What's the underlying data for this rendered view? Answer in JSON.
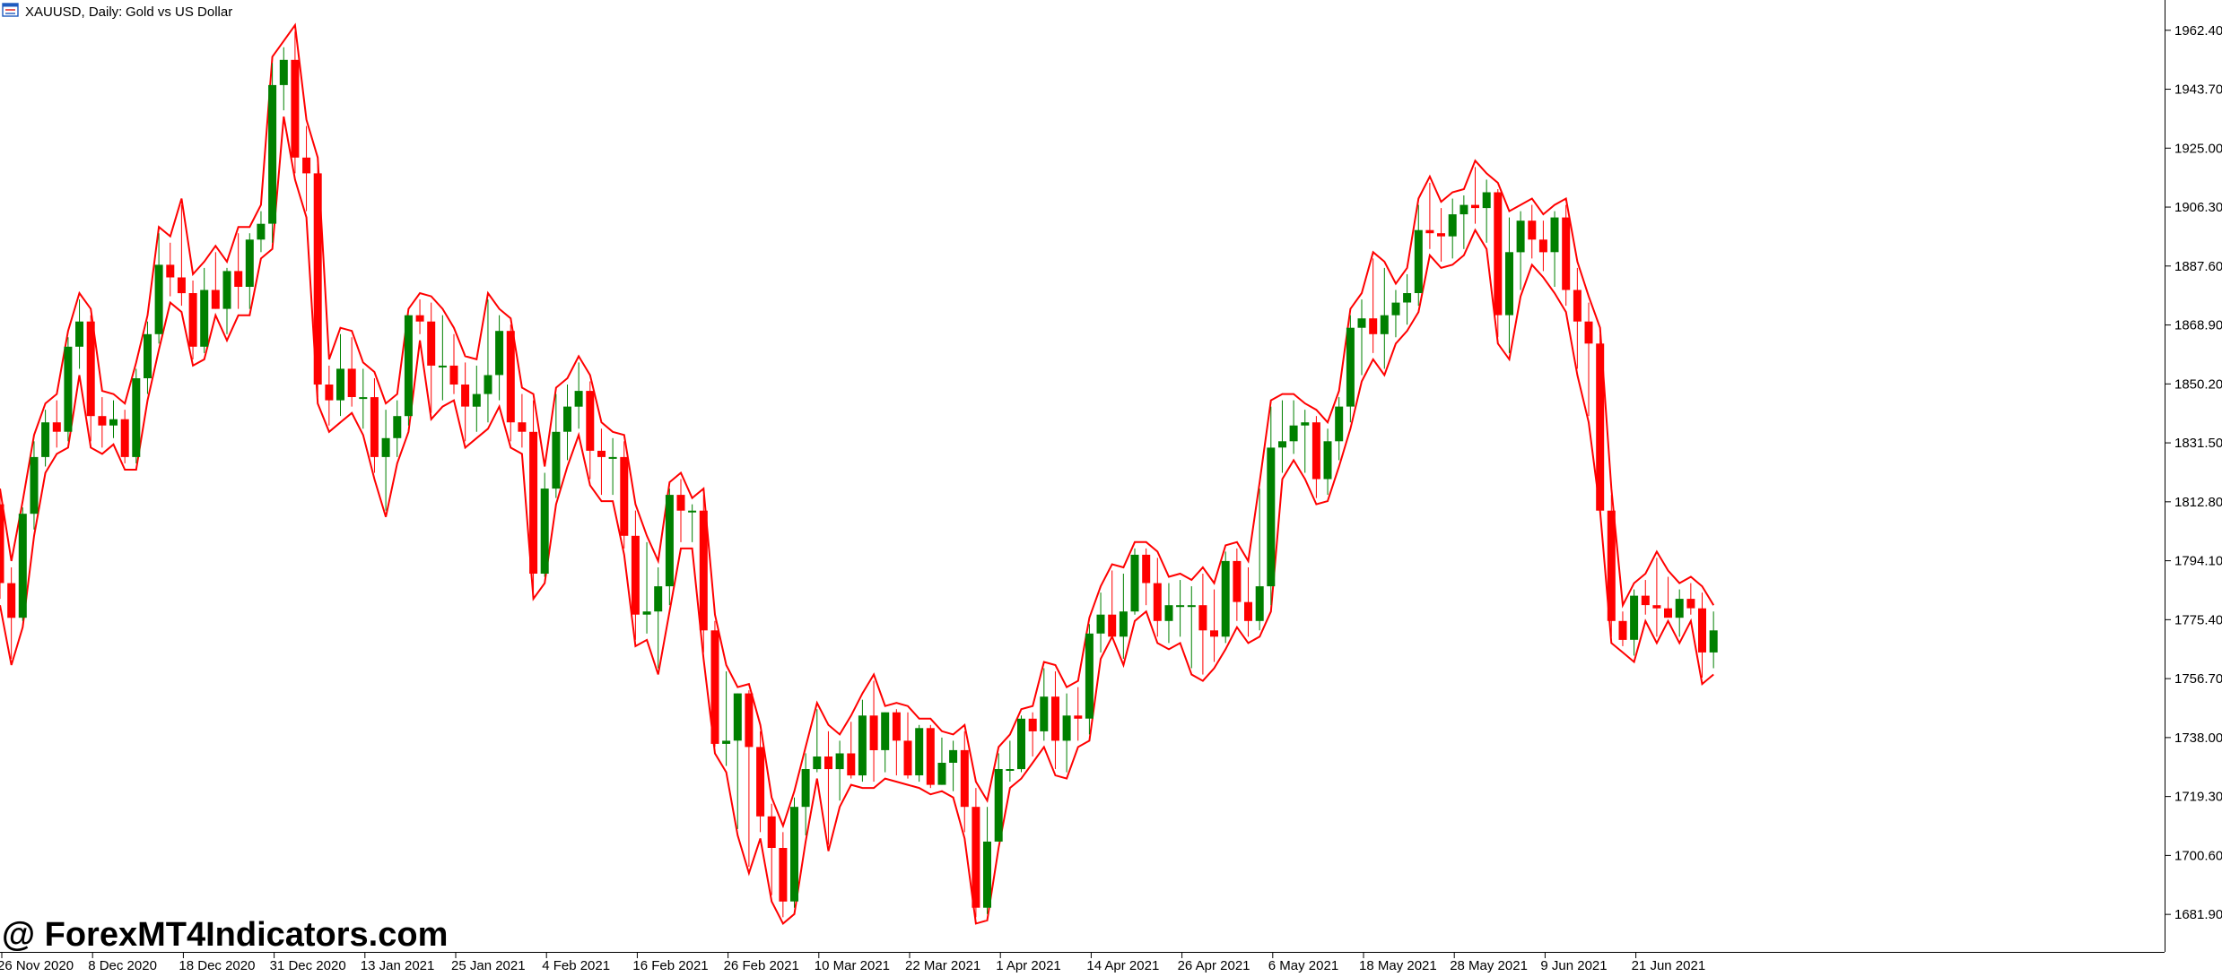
{
  "header": {
    "symbol_label": "XAUUSD, Daily:",
    "description": "Gold vs US Dollar"
  },
  "watermark": "@ ForexMT4Indicators.com",
  "colors": {
    "bull": "#008000",
    "bear": "#ff0000",
    "envelope": "#ff0000",
    "axis": "#000000",
    "background": "#ffffff"
  },
  "chart_data": {
    "type": "candlestick",
    "symbol": "XAUUSD",
    "timeframe": "Daily",
    "ylim": [
      1670.0,
      1972.0
    ],
    "y_ticks": [
      1681.9,
      1700.6,
      1719.3,
      1738.0,
      1756.7,
      1775.4,
      1794.1,
      1812.8,
      1831.5,
      1850.2,
      1868.9,
      1887.6,
      1906.3,
      1925.0,
      1943.7,
      1962.4
    ],
    "y_tick_labels": [
      "1681.90",
      "1700.60",
      "1719.30",
      "1738.00",
      "1756.70",
      "1775.40",
      "1794.10",
      "1812.80",
      "1831.50",
      "1850.20",
      "1868.90",
      "1887.60",
      "1906.30",
      "1925.00",
      "1943.70",
      "1962.40"
    ],
    "x_ticks": [
      {
        "label": "26 Nov 2020",
        "index": 0
      },
      {
        "label": "8 Dec 2020",
        "index": 8
      },
      {
        "label": "18 Dec 2020",
        "index": 16
      },
      {
        "label": "31 Dec 2020",
        "index": 24
      },
      {
        "label": "13 Jan 2021",
        "index": 32
      },
      {
        "label": "25 Jan 2021",
        "index": 40
      },
      {
        "label": "4 Feb 2021",
        "index": 48
      },
      {
        "label": "16 Feb 2021",
        "index": 56
      },
      {
        "label": "26 Feb 2021",
        "index": 64
      },
      {
        "label": "10 Mar 2021",
        "index": 72
      },
      {
        "label": "22 Mar 2021",
        "index": 80
      },
      {
        "label": "1 Apr 2021",
        "index": 88
      },
      {
        "label": "14 Apr 2021",
        "index": 96
      },
      {
        "label": "26 Apr 2021",
        "index": 104
      },
      {
        "label": "6 May 2021",
        "index": 112
      },
      {
        "label": "18 May 2021",
        "index": 120
      },
      {
        "label": "28 May 2021",
        "index": 128
      },
      {
        "label": "9 Jun 2021",
        "index": 136
      },
      {
        "label": "21 Jun 2021",
        "index": 144
      }
    ],
    "candles": [
      [
        1812,
        1815,
        1782,
        1787
      ],
      [
        1787,
        1792,
        1763,
        1776
      ],
      [
        1776,
        1811,
        1775,
        1809
      ],
      [
        1809,
        1832,
        1804,
        1827
      ],
      [
        1827,
        1842,
        1824,
        1838
      ],
      [
        1838,
        1845,
        1830,
        1835
      ],
      [
        1835,
        1865,
        1832,
        1862
      ],
      [
        1862,
        1877,
        1855,
        1870
      ],
      [
        1870,
        1872,
        1832,
        1840
      ],
      [
        1840,
        1846,
        1830,
        1837
      ],
      [
        1837,
        1845,
        1833,
        1839
      ],
      [
        1839,
        1842,
        1825,
        1827
      ],
      [
        1827,
        1855,
        1825,
        1852
      ],
      [
        1852,
        1870,
        1847,
        1866
      ],
      [
        1866,
        1898,
        1863,
        1888
      ],
      [
        1888,
        1895,
        1878,
        1884
      ],
      [
        1884,
        1907,
        1875,
        1879
      ],
      [
        1879,
        1883,
        1858,
        1862
      ],
      [
        1862,
        1887,
        1860,
        1880
      ],
      [
        1880,
        1892,
        1874,
        1874
      ],
      [
        1874,
        1887,
        1866,
        1886
      ],
      [
        1886,
        1898,
        1874,
        1881
      ],
      [
        1881,
        1898,
        1874,
        1896
      ],
      [
        1896,
        1905,
        1892,
        1901
      ],
      [
        1901,
        1952,
        1895,
        1945
      ],
      [
        1945,
        1957,
        1937,
        1953
      ],
      [
        1953,
        1962,
        1917,
        1922
      ],
      [
        1922,
        1932,
        1905,
        1917
      ],
      [
        1917,
        1920,
        1846,
        1850
      ],
      [
        1850,
        1856,
        1837,
        1845
      ],
      [
        1845,
        1866,
        1840,
        1855
      ],
      [
        1855,
        1865,
        1843,
        1846
      ],
      [
        1846,
        1855,
        1836,
        1846
      ],
      [
        1846,
        1852,
        1822,
        1827
      ],
      [
        1827,
        1842,
        1810,
        1833
      ],
      [
        1833,
        1845,
        1827,
        1840
      ],
      [
        1840,
        1872,
        1837,
        1872
      ],
      [
        1872,
        1877,
        1866,
        1870
      ],
      [
        1870,
        1876,
        1841,
        1856
      ],
      [
        1856,
        1872,
        1845,
        1856
      ],
      [
        1856,
        1866,
        1847,
        1850
      ],
      [
        1850,
        1857,
        1832,
        1843
      ],
      [
        1843,
        1856,
        1835,
        1847
      ],
      [
        1847,
        1877,
        1838,
        1853
      ],
      [
        1853,
        1872,
        1845,
        1867
      ],
      [
        1867,
        1869,
        1832,
        1838
      ],
      [
        1838,
        1847,
        1830,
        1835
      ],
      [
        1835,
        1845,
        1784,
        1790
      ],
      [
        1790,
        1822,
        1789,
        1817
      ],
      [
        1817,
        1847,
        1814,
        1835
      ],
      [
        1835,
        1850,
        1826,
        1843
      ],
      [
        1843,
        1857,
        1836,
        1848
      ],
      [
        1848,
        1851,
        1820,
        1829
      ],
      [
        1829,
        1836,
        1815,
        1827
      ],
      [
        1827,
        1833,
        1815,
        1827
      ],
      [
        1827,
        1832,
        1798,
        1802
      ],
      [
        1802,
        1810,
        1769,
        1777
      ],
      [
        1777,
        1800,
        1771,
        1778
      ],
      [
        1778,
        1792,
        1760,
        1786
      ],
      [
        1786,
        1817,
        1780,
        1815
      ],
      [
        1815,
        1820,
        1800,
        1810
      ],
      [
        1810,
        1812,
        1800,
        1810
      ],
      [
        1810,
        1815,
        1765,
        1772
      ],
      [
        1772,
        1775,
        1735,
        1736
      ],
      [
        1736,
        1759,
        1729,
        1737
      ],
      [
        1737,
        1752,
        1709,
        1752
      ],
      [
        1752,
        1753,
        1697,
        1735
      ],
      [
        1735,
        1740,
        1708,
        1713
      ],
      [
        1713,
        1717,
        1688,
        1703
      ],
      [
        1703,
        1708,
        1681,
        1686
      ],
      [
        1686,
        1719,
        1684,
        1716
      ],
      [
        1716,
        1733,
        1707,
        1728
      ],
      [
        1728,
        1747,
        1727,
        1732
      ],
      [
        1732,
        1740,
        1704,
        1728
      ],
      [
        1728,
        1737,
        1718,
        1733
      ],
      [
        1733,
        1743,
        1725,
        1726
      ],
      [
        1726,
        1750,
        1724,
        1745
      ],
      [
        1745,
        1756,
        1724,
        1734
      ],
      [
        1734,
        1746,
        1727,
        1746
      ],
      [
        1746,
        1747,
        1726,
        1737
      ],
      [
        1737,
        1746,
        1725,
        1726
      ],
      [
        1726,
        1742,
        1724,
        1741
      ],
      [
        1741,
        1742,
        1722,
        1723
      ],
      [
        1723,
        1738,
        1723,
        1730
      ],
      [
        1730,
        1737,
        1721,
        1734
      ],
      [
        1734,
        1740,
        1708,
        1716
      ],
      [
        1716,
        1722,
        1681,
        1684
      ],
      [
        1684,
        1716,
        1682,
        1705
      ],
      [
        1705,
        1733,
        1705,
        1728
      ],
      [
        1728,
        1737,
        1724,
        1728
      ],
      [
        1728,
        1745,
        1727,
        1744
      ],
      [
        1744,
        1746,
        1732,
        1740
      ],
      [
        1740,
        1760,
        1737,
        1751
      ],
      [
        1751,
        1759,
        1728,
        1737
      ],
      [
        1737,
        1752,
        1727,
        1745
      ],
      [
        1745,
        1754,
        1737,
        1744
      ],
      [
        1744,
        1774,
        1739,
        1771
      ],
      [
        1771,
        1784,
        1765,
        1777
      ],
      [
        1777,
        1791,
        1772,
        1770
      ],
      [
        1770,
        1790,
        1763,
        1778
      ],
      [
        1778,
        1798,
        1777,
        1796
      ],
      [
        1796,
        1798,
        1780,
        1787
      ],
      [
        1787,
        1795,
        1770,
        1775
      ],
      [
        1775,
        1787,
        1768,
        1780
      ],
      [
        1780,
        1788,
        1770,
        1780
      ],
      [
        1780,
        1786,
        1760,
        1780
      ],
      [
        1780,
        1790,
        1758,
        1772
      ],
      [
        1772,
        1785,
        1762,
        1770
      ],
      [
        1770,
        1797,
        1768,
        1794
      ],
      [
        1794,
        1798,
        1775,
        1781
      ],
      [
        1781,
        1792,
        1770,
        1775
      ],
      [
        1775,
        1817,
        1772,
        1786
      ],
      [
        1786,
        1843,
        1780,
        1830
      ],
      [
        1830,
        1845,
        1822,
        1832
      ],
      [
        1832,
        1845,
        1828,
        1837
      ],
      [
        1837,
        1842,
        1822,
        1838
      ],
      [
        1838,
        1840,
        1814,
        1820
      ],
      [
        1820,
        1836,
        1815,
        1832
      ],
      [
        1832,
        1846,
        1826,
        1843
      ],
      [
        1843,
        1872,
        1838,
        1868
      ],
      [
        1868,
        1877,
        1853,
        1871
      ],
      [
        1871,
        1890,
        1860,
        1866
      ],
      [
        1866,
        1887,
        1855,
        1872
      ],
      [
        1872,
        1880,
        1865,
        1876
      ],
      [
        1876,
        1885,
        1869,
        1879
      ],
      [
        1879,
        1907,
        1875,
        1899
      ],
      [
        1899,
        1914,
        1893,
        1898
      ],
      [
        1898,
        1906,
        1889,
        1897
      ],
      [
        1897,
        1909,
        1890,
        1904
      ],
      [
        1904,
        1910,
        1893,
        1907
      ],
      [
        1907,
        1919,
        1901,
        1906
      ],
      [
        1906,
        1915,
        1895,
        1911
      ],
      [
        1911,
        1912,
        1865,
        1872
      ],
      [
        1872,
        1903,
        1860,
        1892
      ],
      [
        1892,
        1905,
        1880,
        1902
      ],
      [
        1902,
        1907,
        1890,
        1896
      ],
      [
        1896,
        1902,
        1886,
        1892
      ],
      [
        1892,
        1905,
        1881,
        1903
      ],
      [
        1903,
        1907,
        1875,
        1880
      ],
      [
        1880,
        1887,
        1855,
        1870
      ],
      [
        1870,
        1876,
        1840,
        1863
      ],
      [
        1863,
        1866,
        1812,
        1810
      ],
      [
        1810,
        1815,
        1770,
        1775
      ],
      [
        1775,
        1778,
        1767,
        1769
      ],
      [
        1769,
        1785,
        1764,
        1783
      ],
      [
        1783,
        1788,
        1777,
        1780
      ],
      [
        1780,
        1795,
        1770,
        1779
      ],
      [
        1779,
        1789,
        1777,
        1776
      ],
      [
        1776,
        1785,
        1770,
        1782
      ],
      [
        1782,
        1787,
        1777,
        1779
      ],
      [
        1779,
        1784,
        1757,
        1765
      ],
      [
        1765,
        1778,
        1760,
        1772
      ]
    ]
  }
}
